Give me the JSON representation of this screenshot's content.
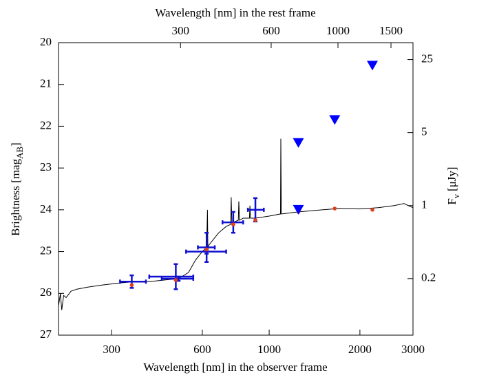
{
  "chart_data": {
    "type": "line",
    "title": "Wavelength [nm] in the rest frame",
    "xlabel": "Wavelength [nm] in the observer frame",
    "ylabel": {
      "text": "Brightness [mag",
      "sub": "AB",
      "end": "]"
    },
    "y2label": {
      "text": "F",
      "sub": "ν",
      "end": " [μJy]"
    },
    "xscale": "log",
    "xlim": [
      200,
      3000
    ],
    "xticks": [
      300,
      600,
      1000,
      2000,
      3000
    ],
    "x2scale": "log",
    "x2lim": [
      118,
      1775
    ],
    "x2ticks": [
      300,
      600,
      1000,
      1500
    ],
    "ylim": [
      27,
      20
    ],
    "yticks": [
      20,
      21,
      22,
      23,
      24,
      25,
      26,
      27
    ],
    "y2scale": "log",
    "y2lim": [
      0.0575,
      36.3
    ],
    "y2ticks": [
      25,
      5,
      1,
      0.2
    ],
    "series": [
      {
        "type": "line",
        "color": "#000000",
        "x": [
          200,
          203,
          205,
          208,
          212,
          220,
          230,
          250,
          280,
          320,
          360,
          400,
          450,
          500,
          540,
          570,
          600,
          620,
          624,
          626,
          630,
          680,
          720,
          745,
          748,
          752,
          760,
          790,
          793,
          797,
          820,
          860,
          863,
          867,
          900,
          1000,
          1090,
          1093,
          1097,
          1100,
          1250,
          1500,
          1700,
          2000,
          2300,
          2600,
          2800,
          3000
        ],
        "values": [
          26.3,
          26.0,
          26.4,
          26.05,
          26.1,
          25.95,
          25.9,
          25.85,
          25.8,
          25.75,
          25.72,
          25.72,
          25.68,
          25.65,
          25.5,
          25.2,
          25.0,
          24.9,
          24.0,
          24.9,
          24.85,
          24.55,
          24.4,
          24.35,
          23.7,
          24.35,
          24.3,
          24.25,
          23.8,
          24.25,
          24.2,
          24.2,
          23.9,
          24.2,
          24.2,
          24.15,
          24.1,
          22.3,
          24.1,
          24.1,
          24.05,
          24.0,
          23.97,
          23.98,
          23.95,
          23.9,
          23.85,
          23.95
        ]
      },
      {
        "type": "errorbar",
        "color": "#1010d0",
        "x": [
          350,
          490,
          500,
          620,
          620,
          760,
          900
        ],
        "values": [
          25.72,
          25.6,
          25.65,
          24.9,
          25.0,
          24.3,
          24.0
        ],
        "xerr": [
          [
            30,
            40
          ],
          [
            90,
            70
          ],
          [
            60,
            60
          ],
          [
            40,
            40
          ],
          [
            90,
            100
          ],
          [
            60,
            60
          ],
          [
            50,
            60
          ]
        ],
        "yerr": [
          0.15,
          0.3,
          0.05,
          0.35,
          0.05,
          0.25,
          0.28
        ]
      },
      {
        "type": "scatter",
        "color": "#e04020",
        "x": [
          350,
          490,
          620,
          760,
          900,
          1250,
          1650,
          2200
        ],
        "values": [
          25.8,
          25.68,
          24.95,
          24.35,
          24.25,
          24.05,
          23.97,
          24.0
        ]
      },
      {
        "type": "upper-limit",
        "color": "#0000ff",
        "x": [
          1250,
          1250,
          1650,
          2200
        ],
        "values": [
          22.4,
          24.0,
          21.85,
          20.55
        ]
      }
    ]
  }
}
